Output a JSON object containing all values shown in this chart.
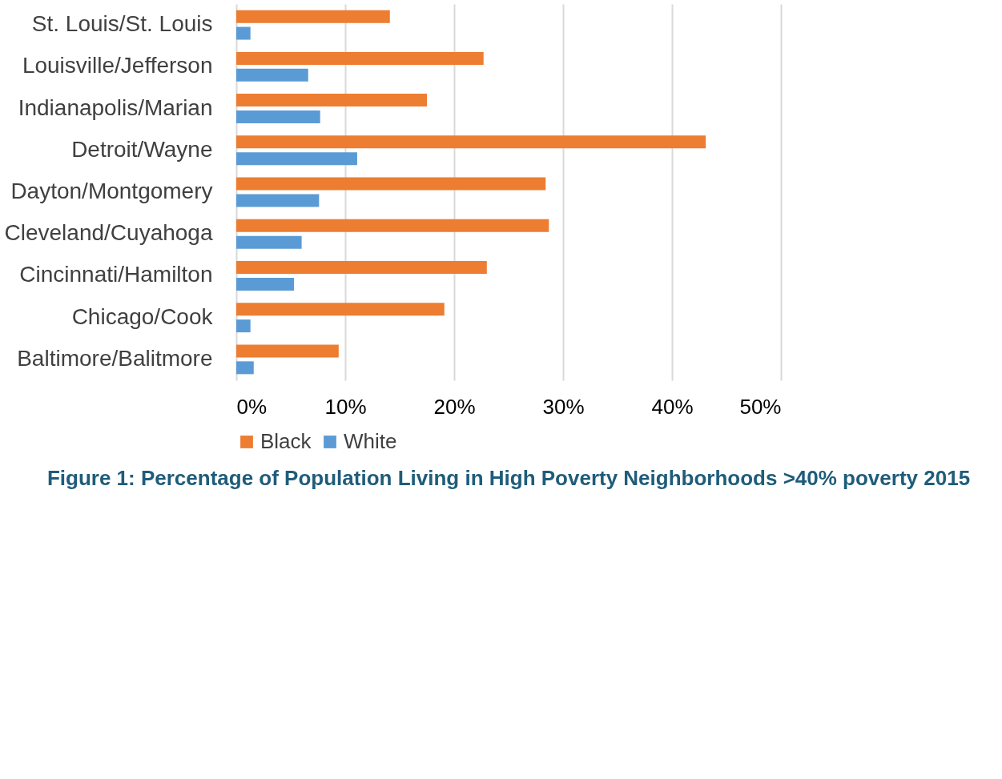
{
  "chart_data": {
    "type": "bar",
    "orientation": "horizontal",
    "title": "Figure 1:  Percentage of Population Living in High Poverty Neighborhoods >40% poverty 2015",
    "categories": [
      "St. Louis/St. Louis",
      "Louisville/Jefferson",
      "Indianapolis/Marian",
      "Detroit/Wayne",
      "Dayton/Montgomery",
      "Cleveland/Cuyahoga",
      "Cincinnati/Hamilton",
      "Chicago/Cook",
      "Baltimore/Balitmore"
    ],
    "series": [
      {
        "name": "Black",
        "color": "#ed7d31",
        "values": [
          14.1,
          22.7,
          17.5,
          43.1,
          28.4,
          28.7,
          23.0,
          19.1,
          9.4
        ]
      },
      {
        "name": "White",
        "color": "#5b9bd5",
        "values": [
          1.3,
          6.6,
          7.7,
          11.1,
          7.6,
          6.0,
          5.3,
          1.3,
          1.6
        ]
      }
    ],
    "xlim": [
      0,
      50
    ],
    "xticks": [
      {
        "value": 0,
        "label": "0%"
      },
      {
        "value": 10,
        "label": "10%"
      },
      {
        "value": 20,
        "label": "20%"
      },
      {
        "value": 30,
        "label": "30%"
      },
      {
        "value": 40,
        "label": "40%"
      },
      {
        "value": 50,
        "label": "50%"
      }
    ],
    "grid": "x",
    "legend": "bottom"
  }
}
